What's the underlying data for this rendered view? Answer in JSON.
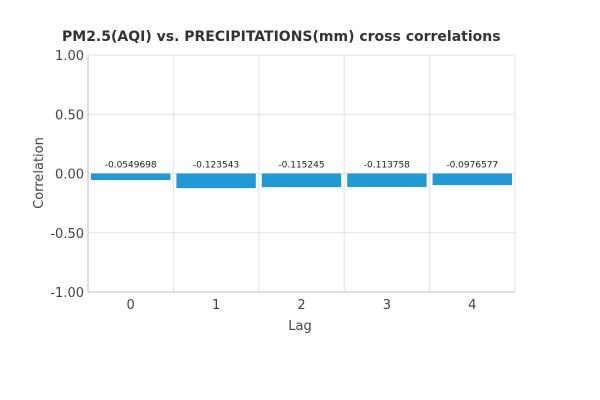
{
  "chart_data": {
    "type": "bar",
    "title": "PM2.5(AQI) vs. PRECIPITATIONS(mm) cross correlations",
    "xlabel": "Lag",
    "ylabel": "Correlation",
    "categories": [
      "0",
      "1",
      "2",
      "3",
      "4"
    ],
    "values": [
      -0.0549698,
      -0.123543,
      -0.115245,
      -0.113758,
      -0.0976577
    ],
    "value_labels": [
      "-0.0549698",
      "-0.123543",
      "-0.115245",
      "-0.113758",
      "-0.0976577"
    ],
    "ylim": [
      -1.0,
      1.0
    ],
    "yticks": [
      1.0,
      0.5,
      0.0,
      -0.5,
      -1.0
    ],
    "ytick_labels": [
      "1.00",
      "0.50",
      "0.00",
      "-0.50",
      "-1.00"
    ],
    "grid": true,
    "bar_color": "#1f9ad6"
  }
}
